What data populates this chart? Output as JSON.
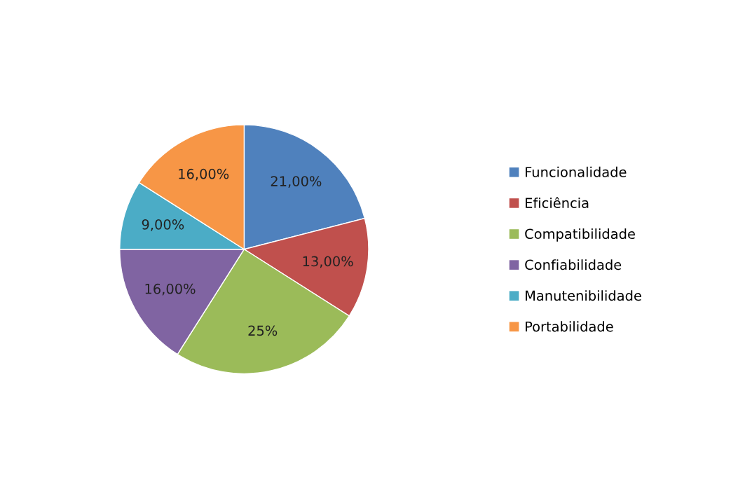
{
  "chart_data": {
    "type": "pie",
    "categories": [
      "Funcionalidade",
      "Eficiência",
      "Compatibilidade",
      "Confiabilidade",
      "Manutenibilidade",
      "Portabilidade"
    ],
    "values": [
      21,
      13,
      25,
      16,
      9,
      16
    ],
    "value_labels": [
      "21,00%",
      "13,00%",
      "25%",
      "16,00%",
      "9,00%",
      "16,00%"
    ],
    "colors": [
      "#4f81bd",
      "#c0504d",
      "#9bbb59",
      "#8064a2",
      "#4bacc6",
      "#f79646"
    ],
    "legend": "right"
  }
}
